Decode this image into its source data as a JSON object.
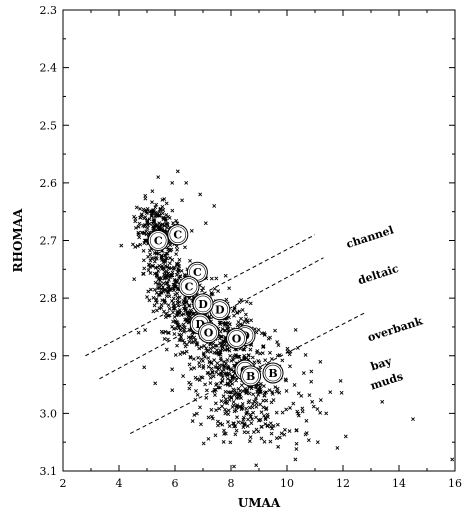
{
  "chart_data": {
    "type": "scatter",
    "title": "",
    "xlabel": "UMAA",
    "ylabel": "RHOMAA",
    "xlim": [
      2,
      16
    ],
    "ylim": [
      2.3,
      3.1
    ],
    "y_inverted": true,
    "xticks": [
      2,
      4,
      6,
      8,
      10,
      12,
      14,
      16
    ],
    "yticks": [
      2.3,
      2.4,
      2.5,
      2.6,
      2.7,
      2.8,
      2.9,
      3.0,
      3.1
    ],
    "xtick_labels": [
      "2",
      "4",
      "6",
      "8",
      "10",
      "12",
      "14",
      "16"
    ],
    "ytick_labels": [
      "2.3",
      "2.4",
      "2.5",
      "2.6",
      "2.7",
      "2.8",
      "2.9",
      "3.0",
      "3.1"
    ],
    "grid": false,
    "point_marker": "x",
    "point_color": "#000000",
    "clusters": [
      {
        "center": [
          5.3,
          2.68
        ],
        "spread": [
          0.35,
          0.025
        ],
        "count": 220
      },
      {
        "center": [
          5.7,
          2.76
        ],
        "spread": [
          0.4,
          0.03
        ],
        "count": 180
      },
      {
        "center": [
          6.5,
          2.82
        ],
        "spread": [
          0.55,
          0.035
        ],
        "count": 220
      },
      {
        "center": [
          7.6,
          2.88
        ],
        "spread": [
          0.65,
          0.04
        ],
        "count": 240
      },
      {
        "center": [
          8.3,
          2.94
        ],
        "spread": [
          0.8,
          0.05
        ],
        "count": 260
      },
      {
        "center": [
          9.2,
          2.98
        ],
        "spread": [
          1.0,
          0.05
        ],
        "count": 160
      }
    ],
    "outliers": [
      [
        5.4,
        2.59
      ],
      [
        5.9,
        2.6
      ],
      [
        6.1,
        2.58
      ],
      [
        6.4,
        2.6
      ],
      [
        6.9,
        2.62
      ],
      [
        7.4,
        2.64
      ],
      [
        7.1,
        2.67
      ],
      [
        10.9,
        2.98
      ],
      [
        11.4,
        3.0
      ],
      [
        11.8,
        3.06
      ],
      [
        12.1,
        3.04
      ],
      [
        12.9,
        3.1
      ],
      [
        13.4,
        2.98
      ],
      [
        14.5,
        3.01
      ],
      [
        15.9,
        3.08
      ],
      [
        10.3,
        3.08
      ],
      [
        9.8,
        3.1
      ],
      [
        4.7,
        2.86
      ],
      [
        4.9,
        2.92
      ],
      [
        10.6,
        2.93
      ],
      [
        11.1,
        3.05
      ],
      [
        8.9,
        3.09
      ]
    ],
    "labeled_points": [
      {
        "label": "C",
        "x": 5.4,
        "y": 2.7
      },
      {
        "label": "C",
        "x": 6.1,
        "y": 2.69
      },
      {
        "label": "C",
        "x": 6.8,
        "y": 2.755
      },
      {
        "label": "C",
        "x": 6.5,
        "y": 2.78
      },
      {
        "label": "D",
        "x": 7.6,
        "y": 2.82
      },
      {
        "label": "D",
        "x": 7.0,
        "y": 2.81
      },
      {
        "label": "D",
        "x": 6.9,
        "y": 2.845
      },
      {
        "label": "O",
        "x": 7.2,
        "y": 2.86
      },
      {
        "label": "O",
        "x": 8.5,
        "y": 2.865
      },
      {
        "label": "O",
        "x": 8.2,
        "y": 2.87
      },
      {
        "label": "O",
        "x": 8.5,
        "y": 2.925
      },
      {
        "label": "B",
        "x": 8.7,
        "y": 2.935
      },
      {
        "label": "B",
        "x": 9.5,
        "y": 2.93
      }
    ],
    "dashed_lines": [
      {
        "from": [
          2.8,
          2.9
        ],
        "to": [
          11.0,
          2.69
        ]
      },
      {
        "from": [
          3.3,
          2.94
        ],
        "to": [
          11.3,
          2.73
        ]
      },
      {
        "from": [
          4.4,
          3.035
        ],
        "to": [
          12.8,
          2.825
        ]
      }
    ],
    "annotations": [
      {
        "text": "channel",
        "x": 13.0,
        "y": 2.7,
        "rotate": -18
      },
      {
        "text": "deltaic",
        "x": 13.3,
        "y": 2.765,
        "rotate": -18
      },
      {
        "text": "overbank",
        "x": 13.9,
        "y": 2.86,
        "rotate": -18
      },
      {
        "text": "bay",
        "x": 13.4,
        "y": 2.92,
        "rotate": -18
      },
      {
        "text": "muds",
        "x": 13.6,
        "y": 2.95,
        "rotate": -18
      }
    ]
  }
}
